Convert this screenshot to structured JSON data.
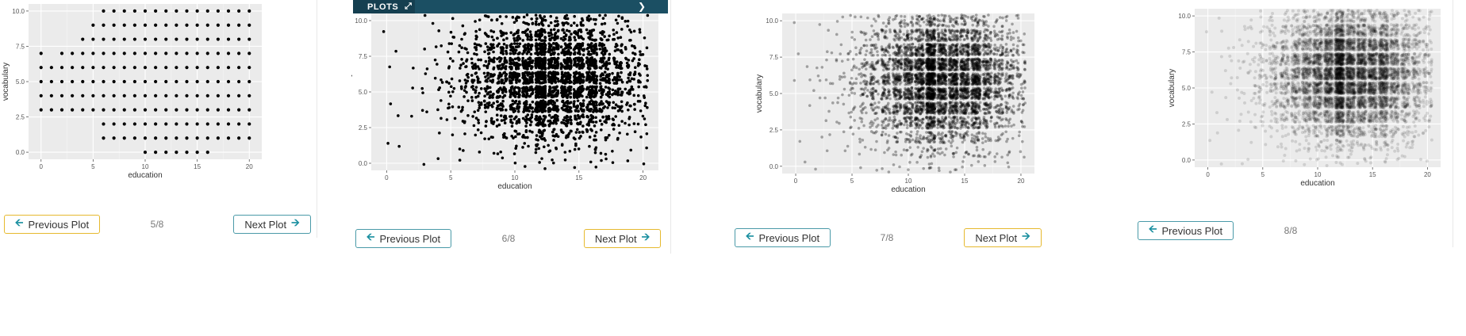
{
  "header": {
    "tab_label": "PLOTS",
    "expand_icon": "expand-icon",
    "next_icon": "chevron-right-icon"
  },
  "nav": {
    "prev_label": "Previous Plot",
    "next_label": "Next Plot",
    "prev_icon": "arrow-left-icon",
    "next_icon": "arrow-right-icon",
    "counters": [
      "5/8",
      "6/8",
      "7/8",
      "8/8"
    ]
  },
  "colors": {
    "teal": "#4a9aa8",
    "gold": "#e6b92e",
    "header": "#1b4f63",
    "panel_bg": "#ebebeb"
  },
  "chart_data": [
    {
      "type": "scatter",
      "xlabel": "education",
      "ylabel": "vocabulary",
      "xlim": [
        0,
        20
      ],
      "ylim": [
        0,
        10
      ],
      "x_ticks": [
        "0",
        "5",
        "10",
        "15",
        "20"
      ],
      "y_ticks": [
        "0.0",
        "2.5",
        "5.0",
        "7.5",
        "10.0"
      ],
      "rendering": "unjittered grid points at integer education/vocabulary values",
      "grid": true
    },
    {
      "type": "scatter",
      "xlabel": "education",
      "ylabel": "vocabulary",
      "xlim": [
        0,
        20
      ],
      "ylim": [
        0,
        10
      ],
      "x_ticks": [
        "0",
        "5",
        "10",
        "15",
        "20"
      ],
      "y_ticks": [
        "0.0",
        "2.5",
        "5.0",
        "7.5",
        "10.0"
      ],
      "rendering": "jittered points, opaque",
      "grid": true
    },
    {
      "type": "scatter",
      "xlabel": "education",
      "ylabel": "vocabulary",
      "xlim": [
        0,
        20
      ],
      "ylim": [
        0,
        10
      ],
      "x_ticks": [
        "0",
        "5",
        "10",
        "15",
        "20"
      ],
      "y_ticks": [
        "0.0",
        "2.5",
        "5.0",
        "7.5",
        "10.0"
      ],
      "rendering": "jittered points, semi-transparent",
      "grid": true
    },
    {
      "type": "scatter",
      "xlabel": "education",
      "ylabel": "vocabulary",
      "xlim": [
        0,
        20
      ],
      "ylim": [
        0,
        10
      ],
      "x_ticks": [
        "0",
        "5",
        "10",
        "15",
        "20"
      ],
      "y_ticks": [
        "0.0",
        "2.5",
        "5.0",
        "7.5",
        "10.0"
      ],
      "rendering": "jittered points, highly transparent",
      "grid": true
    }
  ]
}
